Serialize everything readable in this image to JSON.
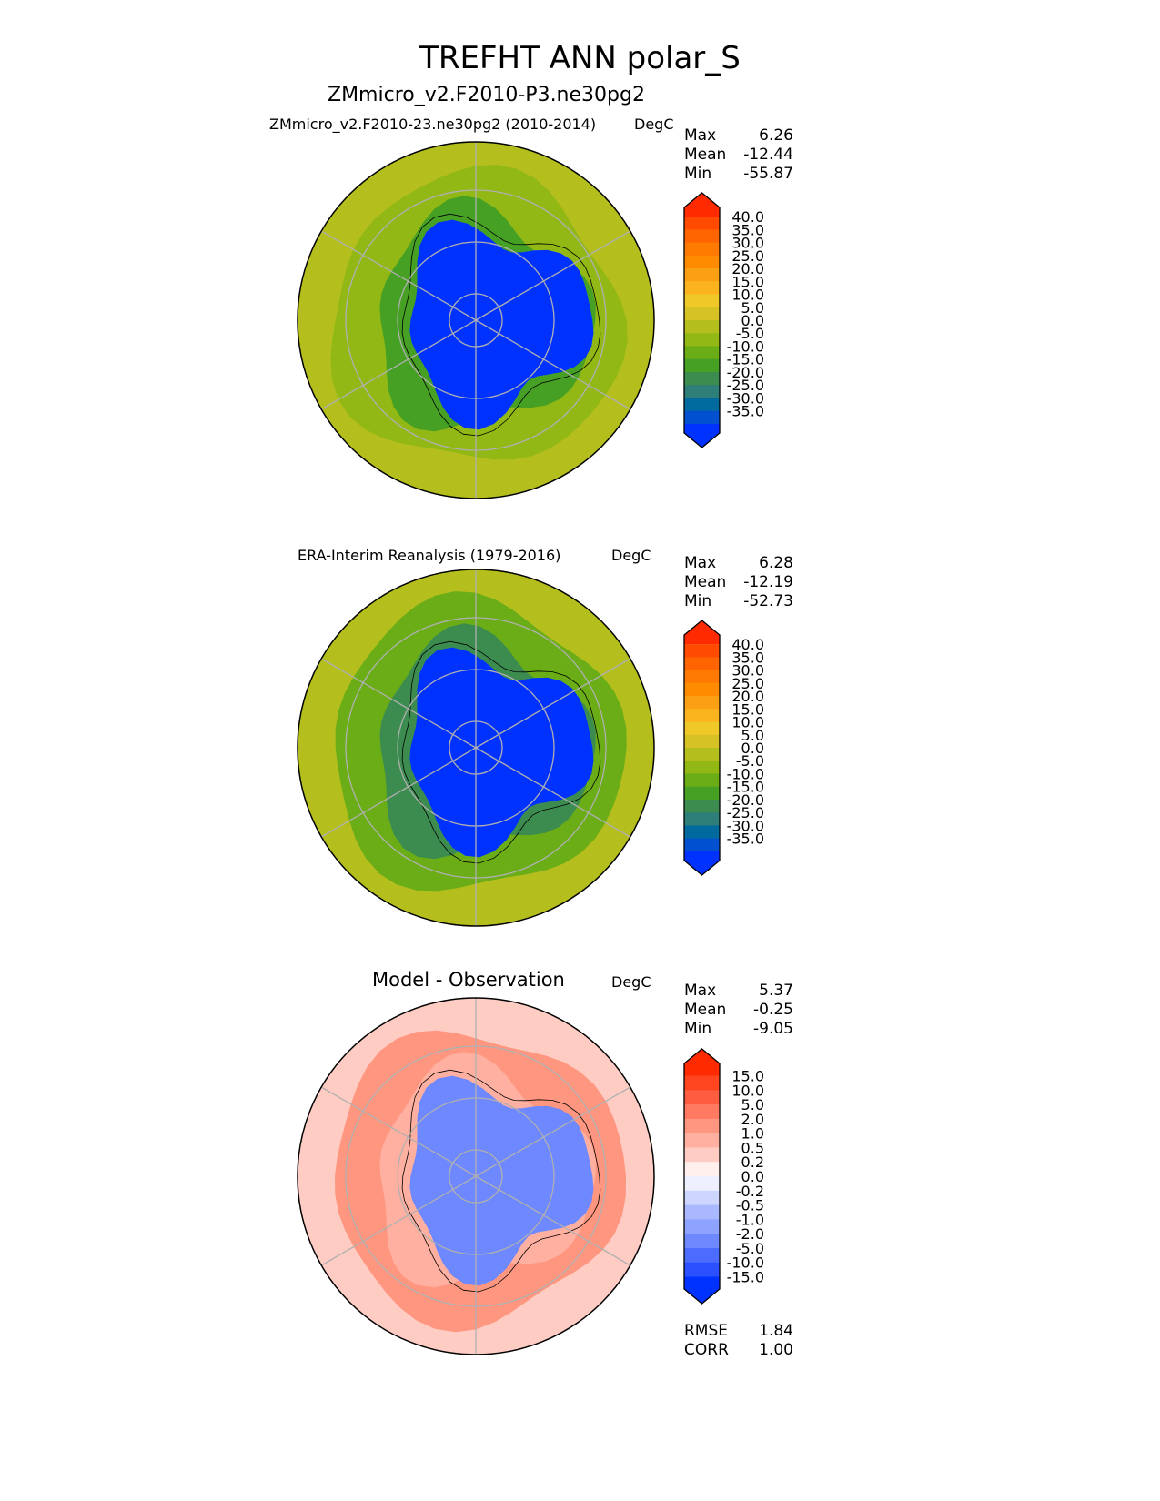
{
  "title": "TREFHT ANN polar_S",
  "chart_data": [
    {
      "type": "heatmap",
      "projection": "south-polar-stereographic",
      "title": "ZMmicro_v2.F2010-P3.ne30pg2",
      "subtitle": "ZMmicro_v2.F2010-23.ne30pg2 (2010-2014)",
      "units": "DegC",
      "stats": {
        "Max": "6.26",
        "Mean": "-12.44",
        "Min": "-55.87"
      },
      "levels": [
        "40.0",
        "35.0",
        "30.0",
        "25.0",
        "20.0",
        "15.0",
        "10.0",
        "5.0",
        "0.0",
        "-5.0",
        "-10.0",
        "-15.0",
        "-20.0",
        "-25.0",
        "-30.0",
        "-35.0"
      ],
      "colors": [
        "#ff2a00",
        "#ff4a00",
        "#ff6400",
        "#ff7a00",
        "#ff8c00",
        "#fba014",
        "#fbb41e",
        "#f0c828",
        "#d6c224",
        "#b4bf1e",
        "#91b814",
        "#6aad16",
        "#45a024",
        "#3c8c50",
        "#2e7e7a",
        "#00699e",
        "#0050d0",
        "#0032ff"
      ],
      "field": {
        "ocean_outer": "#b4bf1e",
        "ocean_mid": "#91b814",
        "coast": "#45a024",
        "interior": "#0032ff"
      }
    },
    {
      "type": "heatmap",
      "projection": "south-polar-stereographic",
      "title": "ERA-Interim Reanalysis (1979-2016)",
      "units": "DegC",
      "stats": {
        "Max": "6.28",
        "Mean": "-12.19",
        "Min": "-52.73"
      },
      "levels": [
        "40.0",
        "35.0",
        "30.0",
        "25.0",
        "20.0",
        "15.0",
        "10.0",
        "5.0",
        "0.0",
        "-5.0",
        "-10.0",
        "-15.0",
        "-20.0",
        "-25.0",
        "-30.0",
        "-35.0"
      ],
      "colors": [
        "#ff2a00",
        "#ff4a00",
        "#ff6400",
        "#ff7a00",
        "#ff8c00",
        "#fba014",
        "#fbb41e",
        "#f0c828",
        "#d6c224",
        "#b4bf1e",
        "#91b814",
        "#6aad16",
        "#45a024",
        "#3c8c50",
        "#2e7e7a",
        "#00699e",
        "#0050d0",
        "#0032ff"
      ],
      "field": {
        "ocean_outer": "#b4bf1e",
        "ocean_mid": "#6aad16",
        "coast": "#3c8c50",
        "interior": "#0032ff"
      }
    },
    {
      "type": "heatmap",
      "projection": "south-polar-stereographic",
      "title": "Model - Observation",
      "units": "DegC",
      "stats": {
        "Max": "5.37",
        "Mean": "-0.25",
        "Min": "-9.05"
      },
      "levels": [
        "15.0",
        "10.0",
        "5.0",
        "2.0",
        "1.0",
        "0.5",
        "0.2",
        "0.0",
        "-0.2",
        "-0.5",
        "-1.0",
        "-2.0",
        "-5.0",
        "-10.0",
        "-15.0"
      ],
      "colors": [
        "#ff2a00",
        "#ff4420",
        "#ff5c40",
        "#ff7a60",
        "#ff9680",
        "#ffb0a0",
        "#ffccc4",
        "#fff0ee",
        "#eef0ff",
        "#cdd6ff",
        "#aab8ff",
        "#8ea2ff",
        "#6e88ff",
        "#4c6cff",
        "#2a50ff",
        "#0032ff"
      ],
      "field": {
        "ocean_outer": "#ffccc4",
        "ocean_mid": "#ff9680",
        "coast": "#ffb0a0",
        "interior": "#6e88ff"
      },
      "metrics": {
        "RMSE": "1.84",
        "CORR": "1.00"
      }
    }
  ]
}
